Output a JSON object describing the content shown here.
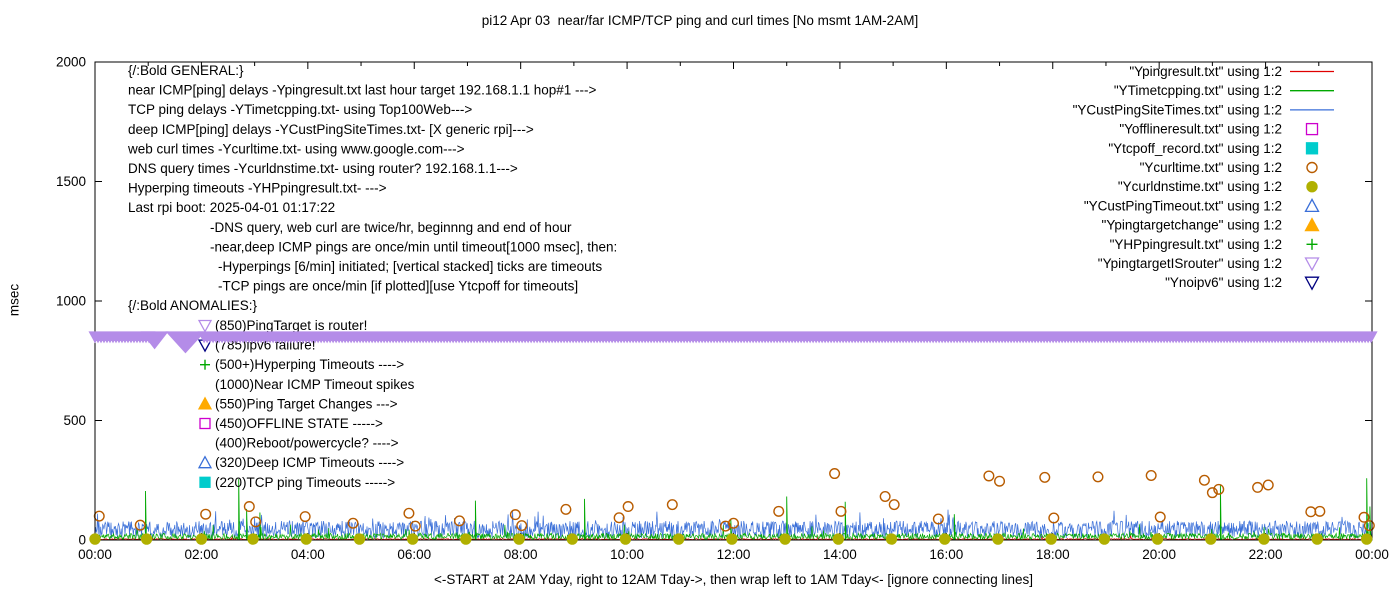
{
  "chart_data": {
    "type": "line",
    "title": "pi12 Apr 03  near/far ICMP/TCP ping and curl times [No msmt 1AM-2AM]",
    "xlabel": "<-START at 2AM Yday, right to 12AM Tday->, then wrap left to 1AM Tday<- [ignore connecting lines]",
    "ylabel": "msec",
    "ylim": [
      0,
      2000
    ],
    "yticks": [
      0,
      500,
      1000,
      1500,
      2000
    ],
    "x_hours_range": [
      0,
      24
    ],
    "xtick_labels": [
      "00:00",
      "02:00",
      "04:00",
      "06:00",
      "08:00",
      "10:00",
      "12:00",
      "14:00",
      "16:00",
      "18:00",
      "20:00",
      "22:00",
      "00:00"
    ],
    "legend": [
      {
        "label": "\"Ypingresult.txt\" using 1:2",
        "sample": "line",
        "color": "#e00000",
        "filled": false
      },
      {
        "label": "\"YTimetcpping.txt\" using 1:2",
        "sample": "line",
        "color": "#00a800",
        "filled": false
      },
      {
        "label": "\"YCustPingSiteTimes.txt\" using 1:2",
        "sample": "line",
        "color": "#3a6fd8",
        "filled": false
      },
      {
        "label": "\"Yofflineresult.txt\" using 1:2",
        "sample": "square",
        "color": "#cd00cd",
        "filled": false
      },
      {
        "label": "\"Ytcpoff_record.txt\" using 1:2",
        "sample": "square",
        "color": "#00cccc",
        "filled": true
      },
      {
        "label": "\"Ycurltime.txt\" using 1:2",
        "sample": "circle",
        "color": "#b85c00",
        "filled": false
      },
      {
        "label": "\"Ycurldnstime.txt\" using 1:2",
        "sample": "circle",
        "color": "#b0b000",
        "filled": true
      },
      {
        "label": "\"YCustPingTimeout.txt\" using 1:2",
        "sample": "tri_up",
        "color": "#3a6fd8",
        "filled": false
      },
      {
        "label": "\"Ypingtargetchange\" using 1:2",
        "sample": "tri_up",
        "color": "#ffaa00",
        "filled": true
      },
      {
        "label": "\"YHPpingresult.txt\" using 1:2",
        "sample": "plus",
        "color": "#00a800",
        "filled": false
      },
      {
        "label": "\"YpingtargetISrouter\" using 1:2",
        "sample": "tri_down",
        "color": "#b48ce8",
        "filled": false
      },
      {
        "label": "\"Ynoipv6\" using 1:2",
        "sample": "tri_down",
        "color": "#000080",
        "filled": false
      }
    ],
    "general_notes": {
      "lines": [
        {
          "text": "{/:Bold GENERAL:}",
          "indent": 0
        },
        {
          "text": "near ICMP[ping] delays -Ypingresult.txt last hour target 192.168.1.1 hop#1 --->",
          "indent": 0
        },
        {
          "text": "TCP ping delays -YTimetcpping.txt- using Top100Web--->",
          "indent": 0
        },
        {
          "text": "deep ICMP[ping] delays -YCustPingSiteTimes.txt- [X generic rpi]--->",
          "indent": 0
        },
        {
          "text": "web curl times -Ycurltime.txt- using www.google.com--->",
          "indent": 0
        },
        {
          "text": "DNS query times -Ycurldnstime.txt- using router? 192.168.1.1--->",
          "indent": 0
        },
        {
          "text": "Hyperping timeouts -YHPpingresult.txt- --->",
          "indent": 0
        },
        {
          "text": "Last rpi boot: 2025-04-01 01:17:22",
          "indent": 0
        },
        {
          "text": "-DNS query, web curl are twice/hr, beginnng and end of hour",
          "indent": 1
        },
        {
          "text": "-near,deep ICMP pings are once/min until timeout[1000 msec], then:",
          "indent": 1
        },
        {
          "text": "-Hyperpings [6/min] initiated; [vertical stacked] ticks are timeouts",
          "indent": 2
        },
        {
          "text": "-TCP pings are once/min [if plotted][use Ytcpoff for timeouts]",
          "indent": 2
        }
      ]
    },
    "anomalies": {
      "header": "{/:Bold ANOMALIES:}",
      "items": [
        {
          "text": "(850)PingTarget is router!",
          "marker": "tri_down",
          "color": "#b48ce8",
          "filled": false
        },
        {
          "text": "(785)ipv6 failure!",
          "marker": "tri_down",
          "color": "#000080",
          "filled": false
        },
        {
          "text": "(500+)Hyperping Timeouts ---->",
          "marker": "plus",
          "color": "#00a800",
          "filled": false
        },
        {
          "text": "(1000)Near ICMP Timeout spikes",
          "marker": "",
          "color": "",
          "filled": false
        },
        {
          "text": "(550)Ping Target Changes --->",
          "marker": "tri_up",
          "color": "#ffaa00",
          "filled": true
        },
        {
          "text": "(450)OFFLINE STATE ----->",
          "marker": "square",
          "color": "#cd00cd",
          "filled": false
        },
        {
          "text": "(400)Reboot/powercycle? ---->",
          "marker": "",
          "color": "",
          "filled": false
        },
        {
          "text": "(320)Deep ICMP Timeouts ---->",
          "marker": "tri_up",
          "color": "#3a6fd8",
          "filled": false
        },
        {
          "text": "(220)TCP ping Timeouts ----->",
          "marker": "square",
          "color": "#00cccc",
          "filled": true
        }
      ]
    },
    "series": {
      "near_icmp_line": {
        "name": "Ypingresult",
        "color": "#e00000",
        "base": 1,
        "amp": 5,
        "spike_p": 0.004,
        "spike_amp": 18,
        "seed": 7
      },
      "deep_icmp_line": {
        "name": "YCustPingSiteTimes",
        "color": "#3a6fd8",
        "base": 8,
        "amp": 72,
        "spike_p": 0.03,
        "spike_amp": 60,
        "seed": 23
      },
      "tcp_ping_line": {
        "name": "YTimetcpping",
        "color": "#00a800",
        "base": 2,
        "amp": 26,
        "spike_p": 0.02,
        "spike_amp": 55,
        "seed": 11
      },
      "tcp_spikes": {
        "name": "hyperping-timeout-spikes",
        "color": "#00a800",
        "points": [
          [
            0.95,
            205
          ],
          [
            2.7,
            255
          ],
          [
            2.85,
            130
          ],
          [
            3.1,
            115
          ],
          [
            7.15,
            165
          ],
          [
            9.2,
            172
          ],
          [
            11.95,
            88
          ],
          [
            13.0,
            182
          ],
          [
            14.1,
            160
          ],
          [
            16.15,
            108
          ],
          [
            21.15,
            232
          ],
          [
            23.9,
            258
          ],
          [
            23.96,
            140
          ]
        ]
      },
      "curl_points": {
        "name": "Ycurltime",
        "color": "#b85c00",
        "points": [
          [
            0.08,
            100
          ],
          [
            0.85,
            62
          ],
          [
            2.08,
            108
          ],
          [
            2.9,
            140
          ],
          [
            3.02,
            76
          ],
          [
            3.95,
            98
          ],
          [
            4.85,
            70
          ],
          [
            5.9,
            112
          ],
          [
            6.02,
            58
          ],
          [
            6.85,
            80
          ],
          [
            7.9,
            106
          ],
          [
            8.02,
            60
          ],
          [
            8.85,
            128
          ],
          [
            9.85,
            93
          ],
          [
            10.02,
            140
          ],
          [
            10.85,
            148
          ],
          [
            11.85,
            58
          ],
          [
            12.0,
            70
          ],
          [
            12.85,
            120
          ],
          [
            13.9,
            278
          ],
          [
            14.02,
            120
          ],
          [
            14.85,
            182
          ],
          [
            15.02,
            148
          ],
          [
            15.85,
            88
          ],
          [
            16.8,
            268
          ],
          [
            17.0,
            246
          ],
          [
            17.85,
            262
          ],
          [
            18.02,
            92
          ],
          [
            18.85,
            264
          ],
          [
            19.85,
            270
          ],
          [
            20.02,
            96
          ],
          [
            20.85,
            250
          ],
          [
            21.0,
            198
          ],
          [
            21.12,
            212
          ],
          [
            21.85,
            220
          ],
          [
            22.05,
            230
          ],
          [
            22.85,
            118
          ],
          [
            23.02,
            120
          ],
          [
            23.85,
            95
          ],
          [
            23.95,
            60
          ]
        ]
      },
      "dns_points": {
        "name": "Ycurldnstime",
        "color": "#b0b000",
        "value": 4,
        "hours": [
          0,
          0.97,
          2.0,
          2.97,
          3.97,
          4.97,
          5.97,
          6.97,
          7.97,
          8.97,
          9.97,
          10.97,
          11.97,
          12.97,
          13.97,
          14.97,
          15.97,
          16.97,
          17.97,
          18.97,
          19.97,
          20.97,
          21.97,
          22.97,
          23.9
        ]
      },
      "router_band": {
        "name": "YpingtargetISrouter",
        "color": "#b48ce8",
        "value": 850,
        "segments": [
          [
            0,
            1.02
          ],
          [
            2.05,
            24
          ]
        ],
        "gap_triangles": [
          [
            1.12,
            28,
            18
          ],
          [
            1.7,
            40,
            22
          ]
        ]
      }
    }
  }
}
